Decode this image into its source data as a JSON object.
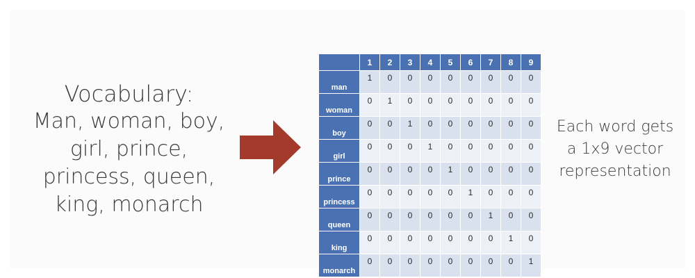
{
  "vocabulary": {
    "title": "Vocabulary:",
    "lines": [
      "Man, woman, boy,",
      "girl, prince,",
      "princess, queen,",
      "king, monarch"
    ]
  },
  "arrow": {
    "color": "#a33a2c",
    "icon": "right-arrow-icon"
  },
  "table": {
    "header_color": "#4a72b3",
    "columns": [
      "1",
      "2",
      "3",
      "4",
      "5",
      "6",
      "7",
      "8",
      "9"
    ],
    "rows": [
      {
        "label": "man",
        "values": [
          "1",
          "0",
          "0",
          "0",
          "0",
          "0",
          "0",
          "0",
          "0"
        ]
      },
      {
        "label": "woman",
        "values": [
          "0",
          "1",
          "0",
          "0",
          "0",
          "0",
          "0",
          "0",
          "0"
        ]
      },
      {
        "label": "boy",
        "values": [
          "0",
          "0",
          "1",
          "0",
          "0",
          "0",
          "0",
          "0",
          "0"
        ]
      },
      {
        "label": "girl",
        "values": [
          "0",
          "0",
          "0",
          "1",
          "0",
          "0",
          "0",
          "0",
          "0"
        ]
      },
      {
        "label": "prince",
        "values": [
          "0",
          "0",
          "0",
          "0",
          "1",
          "0",
          "0",
          "0",
          "0"
        ]
      },
      {
        "label": "princess",
        "values": [
          "0",
          "0",
          "0",
          "0",
          "0",
          "1",
          "0",
          "0",
          "0"
        ]
      },
      {
        "label": "queen",
        "values": [
          "0",
          "0",
          "0",
          "0",
          "0",
          "0",
          "1",
          "0",
          "0"
        ]
      },
      {
        "label": "king",
        "values": [
          "0",
          "0",
          "0",
          "0",
          "0",
          "0",
          "0",
          "1",
          "0"
        ]
      },
      {
        "label": "monarch",
        "values": [
          "0",
          "0",
          "0",
          "0",
          "0",
          "0",
          "0",
          "0",
          "1"
        ]
      }
    ]
  },
  "caption": {
    "lines": [
      "Each word gets",
      "a 1x9 vector",
      "representation"
    ]
  }
}
